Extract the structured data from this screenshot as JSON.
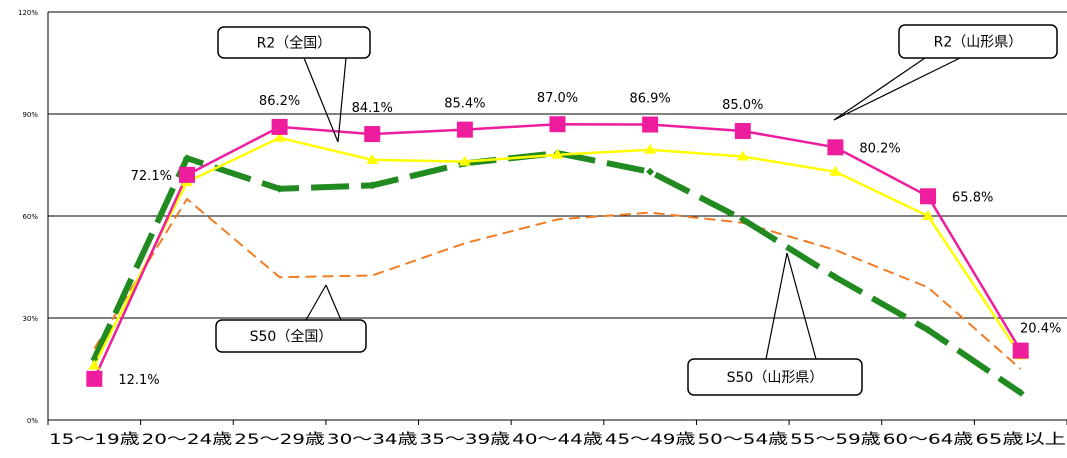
{
  "chart_data": {
    "type": "line",
    "categories": [
      "15～19歳",
      "20～24歳",
      "25～29歳",
      "30～34歳",
      "35～39歳",
      "40～44歳",
      "45～49歳",
      "50～54歳",
      "55～59歳",
      "60～64歳",
      "65歳以上"
    ],
    "y_ticks": [
      "0%",
      "30%",
      "60%",
      "90%",
      "120%"
    ],
    "ylim": [
      0,
      120
    ],
    "grid": true,
    "series": [
      {
        "name": "R2（山形県）",
        "color": "#ee1d9e",
        "style": "solid-square",
        "values": [
          12.1,
          72.1,
          86.2,
          84.1,
          85.4,
          87.0,
          86.9,
          85.0,
          80.2,
          65.8,
          20.4
        ]
      },
      {
        "name": "R2（全国）",
        "color": "#ffff00",
        "style": "solid-triangle",
        "values": [
          16.0,
          70.0,
          83.0,
          76.5,
          76.0,
          78.0,
          79.5,
          77.5,
          73.0,
          60.0,
          19.0
        ]
      },
      {
        "name": "S50（山形県）",
        "color": "#218a21",
        "style": "long-dash",
        "values": [
          18.0,
          77.0,
          68.0,
          69.0,
          75.5,
          78.5,
          73.0,
          59.0,
          42.0,
          26.5,
          8.0
        ]
      },
      {
        "name": "S50（全国）",
        "color": "#f07c23",
        "style": "dash",
        "values": [
          21.0,
          65.0,
          42.0,
          42.5,
          52.0,
          59.0,
          61.0,
          58.0,
          50.0,
          39.0,
          15.0
        ]
      }
    ],
    "data_labels": [
      "12.1%",
      "72.1%",
      "86.2%",
      "84.1%",
      "85.4%",
      "87.0%",
      "86.9%",
      "85.0%",
      "80.2%",
      "65.8%",
      "20.4%"
    ],
    "callouts": [
      "R2（全国）",
      "R2（山形県）",
      "S50（全国）",
      "S50（山形県）"
    ]
  }
}
